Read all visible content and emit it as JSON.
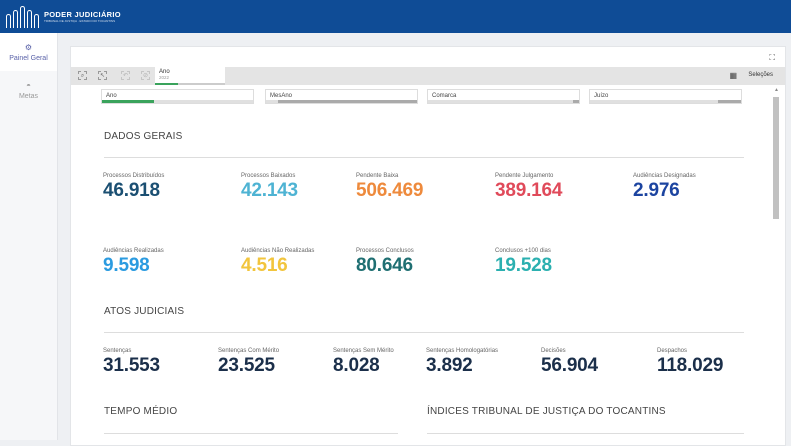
{
  "header": {
    "logo_title": "PODER JUDICIÁRIO",
    "logo_subtitle": "TRIBUNAL DE JUSTIÇA · ESTADO DO TOCANTINS"
  },
  "sidebar": {
    "items": [
      {
        "label": "Painel Geral",
        "icon": "gears-icon",
        "active": true
      },
      {
        "label": "Metas",
        "icon": "gauge-icon",
        "active": false
      }
    ]
  },
  "toolbar": {
    "selection": {
      "field": "Ano",
      "value": "2022"
    },
    "selections_label": "Seleções"
  },
  "filters": [
    {
      "label": "Ano"
    },
    {
      "label": "MesAno"
    },
    {
      "label": "Comarca"
    },
    {
      "label": "Juízo"
    }
  ],
  "dados_gerais": {
    "title": "DADOS GERAIS",
    "kpis": [
      {
        "label": "Processos Distribuídos",
        "value": "46.918",
        "color": "#1b4f72"
      },
      {
        "label": "Processos Baixados",
        "value": "42.143",
        "color": "#4eb3d3"
      },
      {
        "label": "Pendente Baixa",
        "value": "506.469",
        "color": "#ee8a3c"
      },
      {
        "label": "Pendente Julgamento",
        "value": "389.164",
        "color": "#e04a5a"
      },
      {
        "label": "Audiências Designadas",
        "value": "2.976",
        "color": "#1c44a0"
      },
      {
        "label": "Audiências Realizadas",
        "value": "9.598",
        "color": "#2b9be0"
      },
      {
        "label": "Audiências Não Realizadas",
        "value": "4.516",
        "color": "#f2c53d"
      },
      {
        "label": "Processos Conclusos",
        "value": "80.646",
        "color": "#1f6f72"
      },
      {
        "label": "Conclusos +100 dias",
        "value": "19.528",
        "color": "#2bb0b0"
      }
    ]
  },
  "atos_judiciais": {
    "title": "ATOS JUDICIAIS",
    "kpis": [
      {
        "label": "Sentenças",
        "value": "31.553"
      },
      {
        "label": "Sentenças Com Mérito",
        "value": "23.525"
      },
      {
        "label": "Sentenças Sem Mérito",
        "value": "8.028"
      },
      {
        "label": "Sentenças Homologatórias",
        "value": "3.892"
      },
      {
        "label": "Decisões",
        "value": "56.904"
      },
      {
        "label": "Despachos",
        "value": "118.029"
      }
    ]
  },
  "tempo_medio": {
    "title": "TEMPO MÉDIO"
  },
  "indices": {
    "title": "ÍNDICES TRIBUNAL DE JUSTIÇA DO TOCANTINS"
  }
}
